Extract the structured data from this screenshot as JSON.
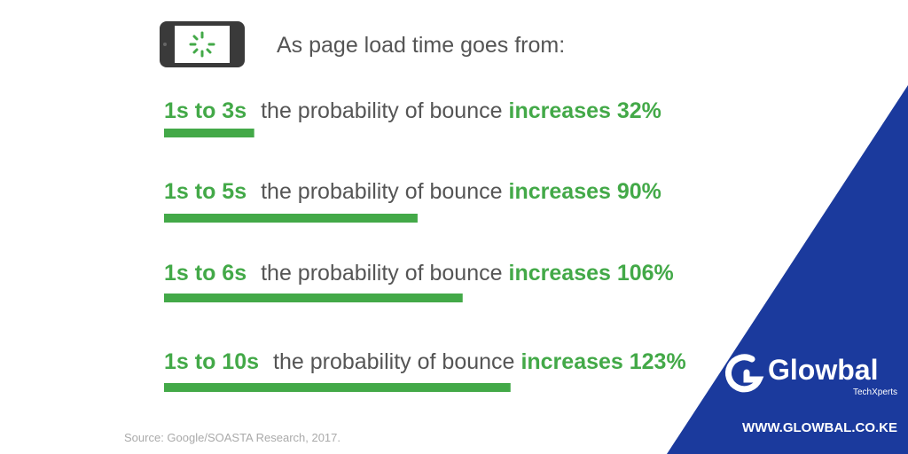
{
  "chart_data": {
    "type": "bar",
    "title": "As page load time goes from:",
    "categories": [
      "1s to 3s",
      "1s to 5s",
      "1s to 6s",
      "1s to 10s"
    ],
    "connector": "the probability of bounce",
    "values": [
      32,
      90,
      106,
      123
    ],
    "value_labels": [
      "increases 32%",
      "increases 90%",
      "increases 106%",
      "increases 123%"
    ],
    "color": "#43a948",
    "xlim": [
      0,
      130
    ],
    "source": "Source: Google/SOASTA Research, 2017."
  },
  "brand": {
    "name": "Glowbal",
    "tagline": "TechXperts",
    "url": "WWW.GLOWBAL.CO.KE"
  }
}
